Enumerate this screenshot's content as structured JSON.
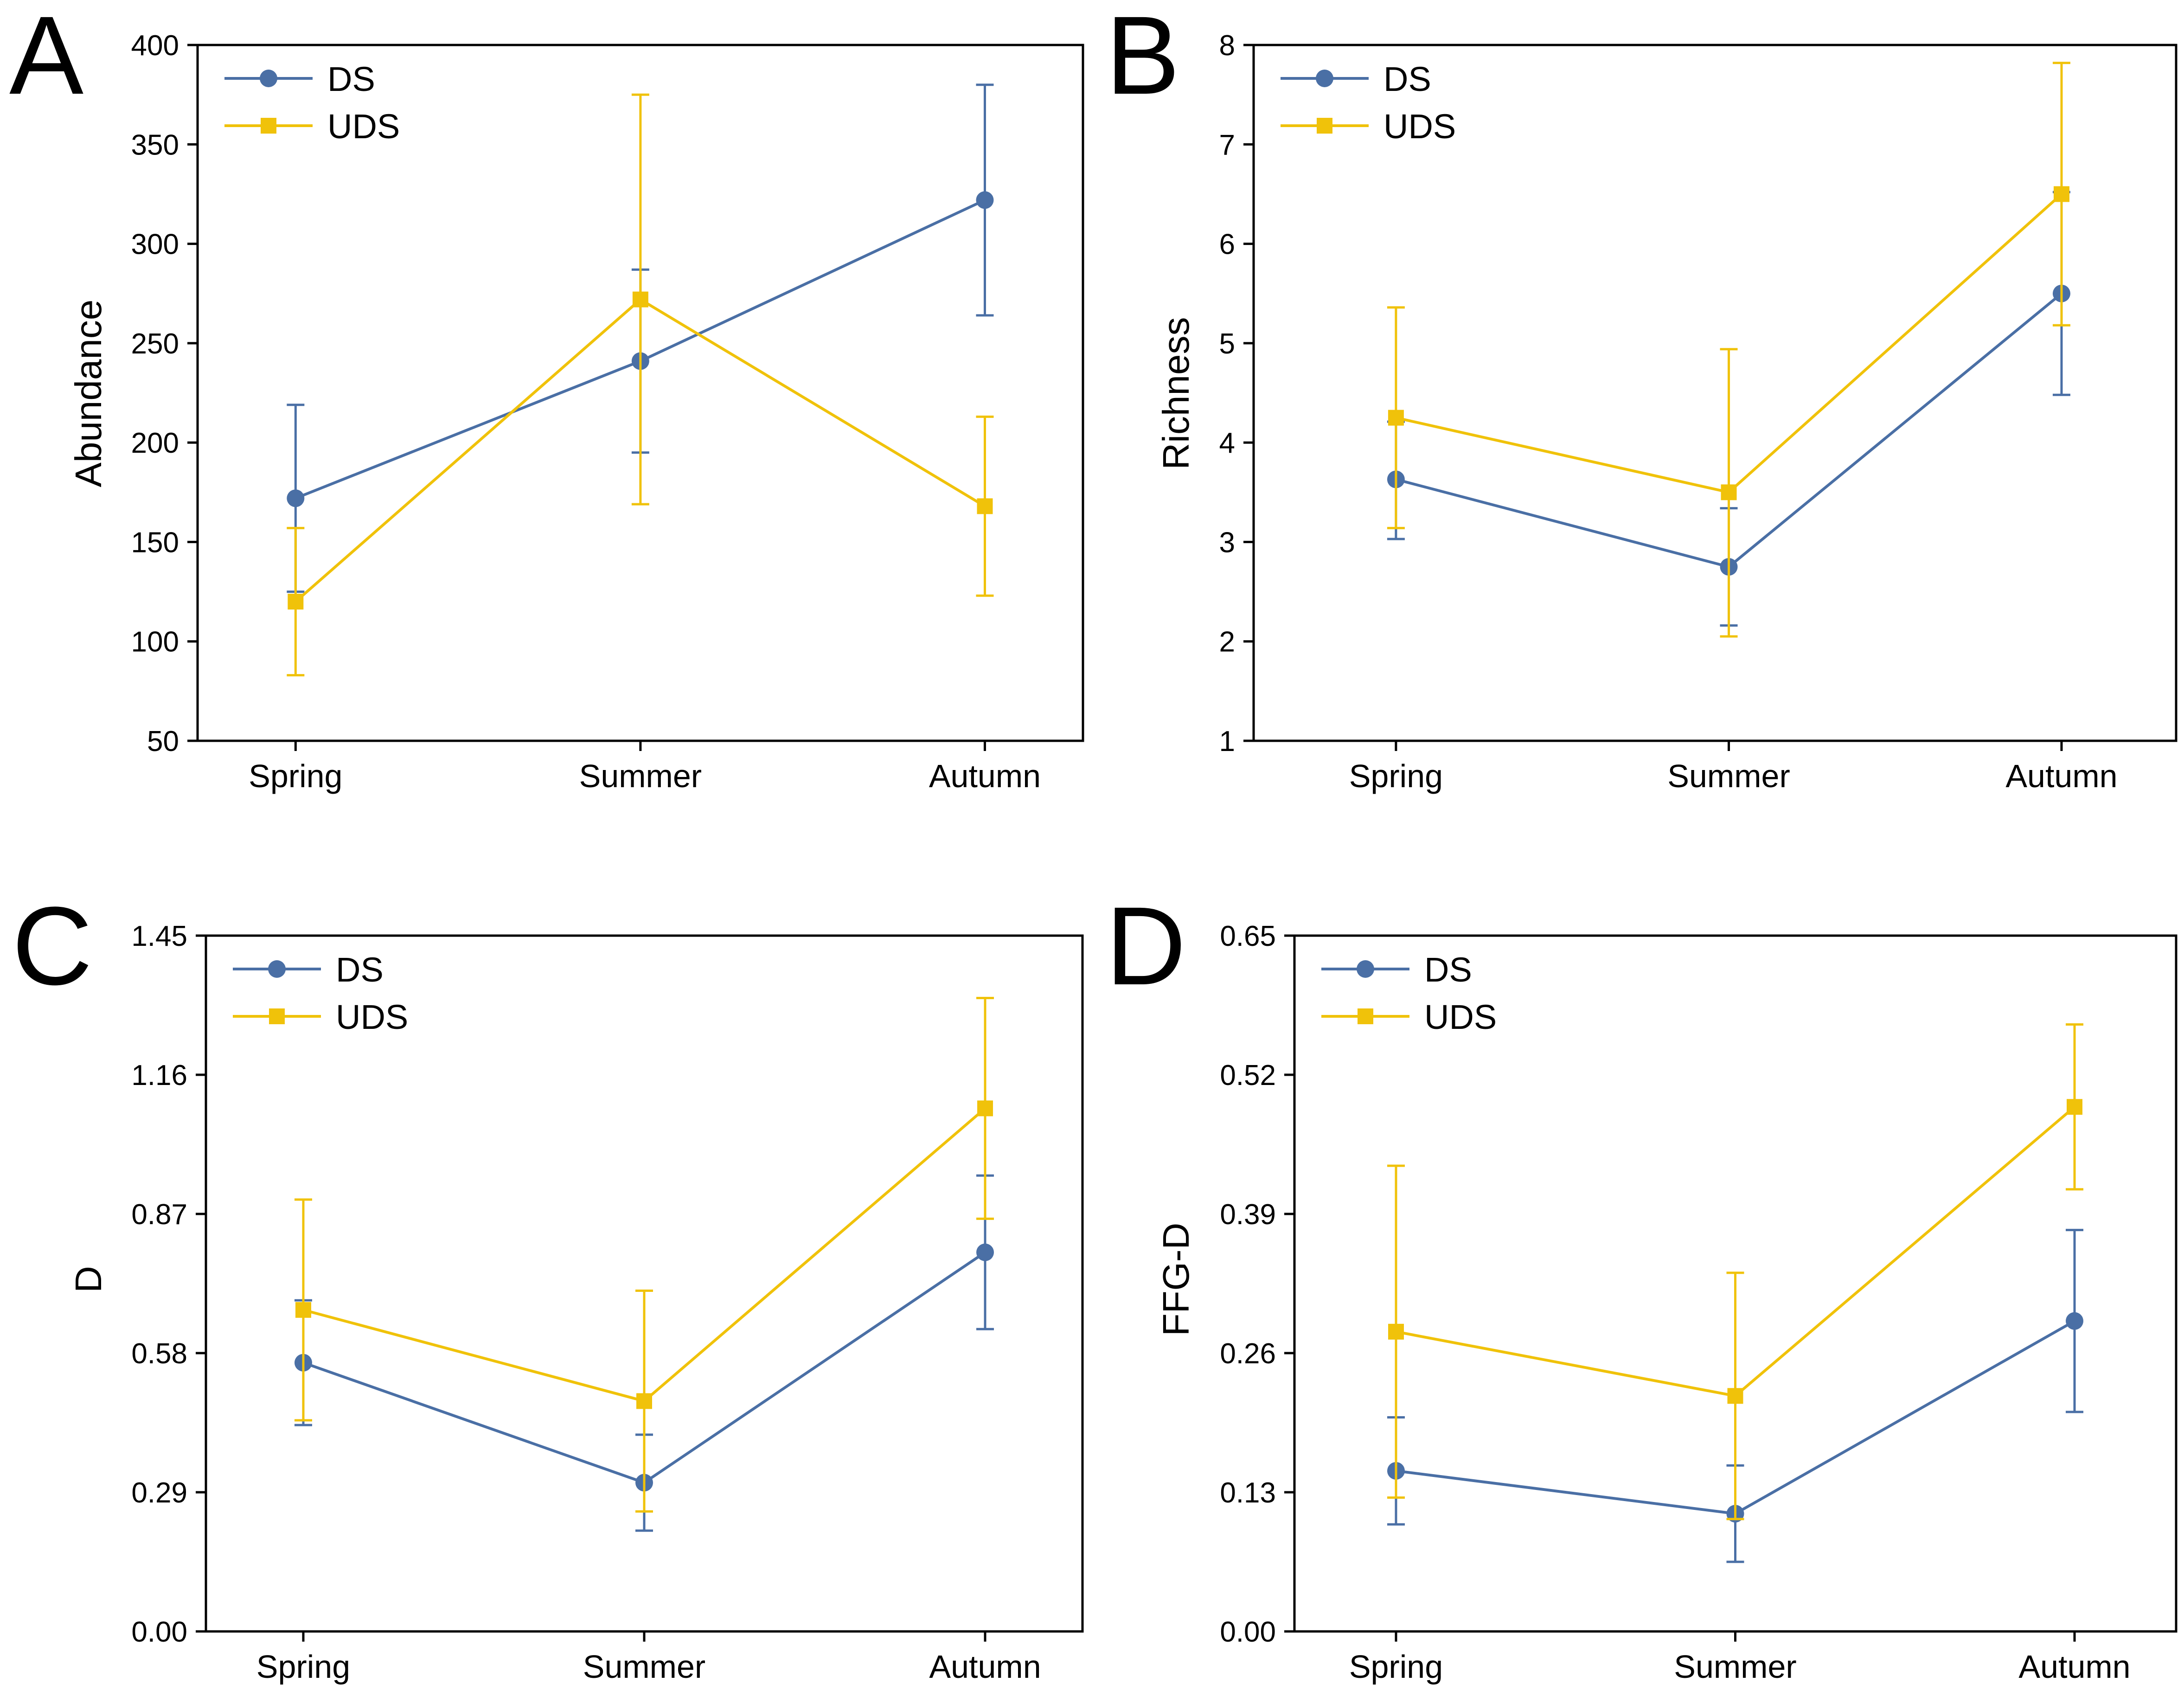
{
  "colors": {
    "DS": "#4a6fa5",
    "UDS": "#f0c20a",
    "axis": "#000000"
  },
  "chart_data": [
    {
      "panel_label": "A",
      "type": "line",
      "categories": [
        "Spring",
        "Summer",
        "Autumn"
      ],
      "ylabel": "Abundance",
      "xlabel": "",
      "ylim": [
        50,
        400
      ],
      "yticks": [
        50,
        100,
        150,
        200,
        250,
        300,
        350,
        400
      ],
      "ytick_labels": [
        "50",
        "100",
        "150",
        "200",
        "250",
        "300",
        "350",
        "400"
      ],
      "legend": "top-left",
      "series": [
        {
          "name": "DS",
          "marker": "circle",
          "values": [
            172,
            241,
            322
          ],
          "err_low": [
            125,
            195,
            264
          ],
          "err_high": [
            219,
            287,
            380
          ]
        },
        {
          "name": "UDS",
          "marker": "square",
          "values": [
            120,
            272,
            168
          ],
          "err_low": [
            83,
            169,
            123
          ],
          "err_high": [
            157,
            375,
            213
          ]
        }
      ]
    },
    {
      "panel_label": "B",
      "type": "line",
      "categories": [
        "Spring",
        "Summer",
        "Autumn"
      ],
      "ylabel": "Richness",
      "xlabel": "",
      "ylim": [
        1,
        8
      ],
      "yticks": [
        1,
        2,
        3,
        4,
        5,
        6,
        7,
        8
      ],
      "ytick_labels": [
        "1",
        "2",
        "3",
        "4",
        "5",
        "6",
        "7",
        "8"
      ],
      "legend": "top-left",
      "series": [
        {
          "name": "DS",
          "marker": "circle",
          "values": [
            3.63,
            2.75,
            5.5
          ],
          "err_low": [
            3.03,
            2.16,
            4.48
          ],
          "err_high": [
            4.21,
            3.34,
            6.52
          ]
        },
        {
          "name": "UDS",
          "marker": "square",
          "values": [
            4.25,
            3.5,
            6.5
          ],
          "err_low": [
            3.14,
            2.05,
            5.18
          ],
          "err_high": [
            5.36,
            4.94,
            7.82
          ]
        }
      ]
    },
    {
      "panel_label": "C",
      "type": "line",
      "categories": [
        "Spring",
        "Summer",
        "Autumn"
      ],
      "ylabel": "D",
      "xlabel": "",
      "ylim": [
        0,
        1.45
      ],
      "yticks": [
        0,
        0.29,
        0.58,
        0.87,
        1.16,
        1.45
      ],
      "ytick_labels": [
        "0.00",
        "0.29",
        "0.58",
        "0.87",
        "1.16",
        "1.45"
      ],
      "legend": "top-left",
      "series": [
        {
          "name": "DS",
          "marker": "circle",
          "values": [
            0.56,
            0.31,
            0.79
          ],
          "err_low": [
            0.43,
            0.21,
            0.63
          ],
          "err_high": [
            0.69,
            0.41,
            0.95
          ]
        },
        {
          "name": "UDS",
          "marker": "square",
          "values": [
            0.67,
            0.48,
            1.09
          ],
          "err_low": [
            0.44,
            0.25,
            0.86
          ],
          "err_high": [
            0.9,
            0.71,
            1.32
          ]
        }
      ]
    },
    {
      "panel_label": "D",
      "type": "line",
      "categories": [
        "Spring",
        "Summer",
        "Autumn"
      ],
      "ylabel": "FFG-D",
      "xlabel": "",
      "ylim": [
        0,
        0.65
      ],
      "yticks": [
        0,
        0.13,
        0.26,
        0.39,
        0.52,
        0.65
      ],
      "ytick_labels": [
        "0.00",
        "0.13",
        "0.26",
        "0.39",
        "0.52",
        "0.65"
      ],
      "legend": "top-left",
      "series": [
        {
          "name": "DS",
          "marker": "circle",
          "values": [
            0.15,
            0.11,
            0.29
          ],
          "err_low": [
            0.1,
            0.065,
            0.205
          ],
          "err_high": [
            0.2,
            0.155,
            0.375
          ]
        },
        {
          "name": "UDS",
          "marker": "square",
          "values": [
            0.28,
            0.22,
            0.49
          ],
          "err_low": [
            0.125,
            0.105,
            0.413
          ],
          "err_high": [
            0.435,
            0.335,
            0.567
          ]
        }
      ]
    }
  ]
}
